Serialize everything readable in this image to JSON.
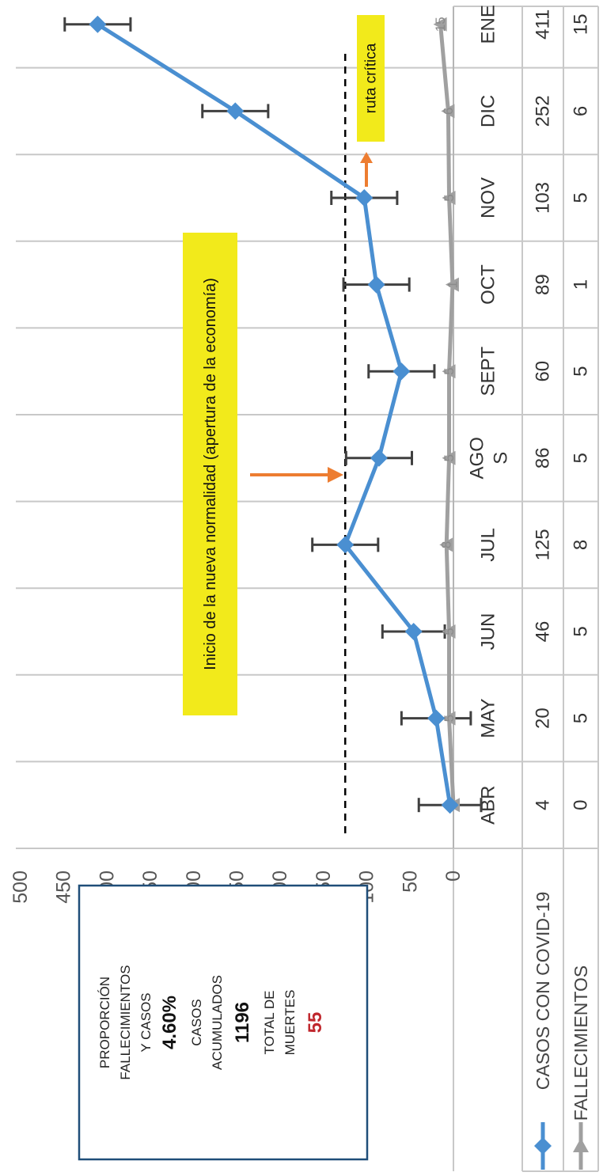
{
  "chart_data": {
    "type": "line",
    "orientation": "rotated-90-clockwise",
    "categories": [
      "ABR",
      "MAY",
      "JUN",
      "JUL",
      "AGO S",
      "SEPT",
      "OCT",
      "NOV",
      "DIC",
      "ENE"
    ],
    "y_ticks": [
      "0",
      "50",
      "100",
      "150",
      "200",
      "250",
      "300",
      "350",
      "400",
      "450",
      "500"
    ],
    "ylim": [
      0,
      500
    ],
    "series": [
      {
        "name": "CASOS CON COVID-19",
        "color": "#4a8fd1",
        "marker": "diamond",
        "values": [
          4,
          20,
          46,
          125,
          86,
          60,
          89,
          103,
          252,
          411
        ],
        "error_bars": [
          36,
          40,
          36,
          38,
          38,
          38,
          38,
          38,
          38,
          38
        ]
      },
      {
        "name": "FALLECIMIENTOS",
        "color": "#a0a0a0",
        "marker": "triangle",
        "values": [
          0,
          5,
          5,
          8,
          5,
          5,
          1,
          5,
          6,
          15
        ]
      }
    ],
    "reference_line": {
      "value": 125,
      "style": "dashed",
      "color": "#000000"
    },
    "annotations": [
      {
        "text": "Inicio de la nueva normalidad (apertura de la economía)",
        "background": "#f2ea1b",
        "arrow_color": "#ed7d31"
      },
      {
        "text": "ruta crítica",
        "background": "#f2ea1b",
        "arrow_color": "#ed7d31"
      }
    ],
    "grid": true
  },
  "summary_box": {
    "line1": "PROPORCIÓN",
    "line2": "FALLECIMIENTOS",
    "line3": "Y CASOS",
    "proportion": "4.60%",
    "line4": "CASOS",
    "line5": "ACUMULADOS",
    "accumulated": "1196",
    "line6": "TOTAL DE",
    "line7": "MUERTES",
    "deaths": "55",
    "deaths_color": "#c0272d",
    "border_color": "#1f4e79"
  }
}
